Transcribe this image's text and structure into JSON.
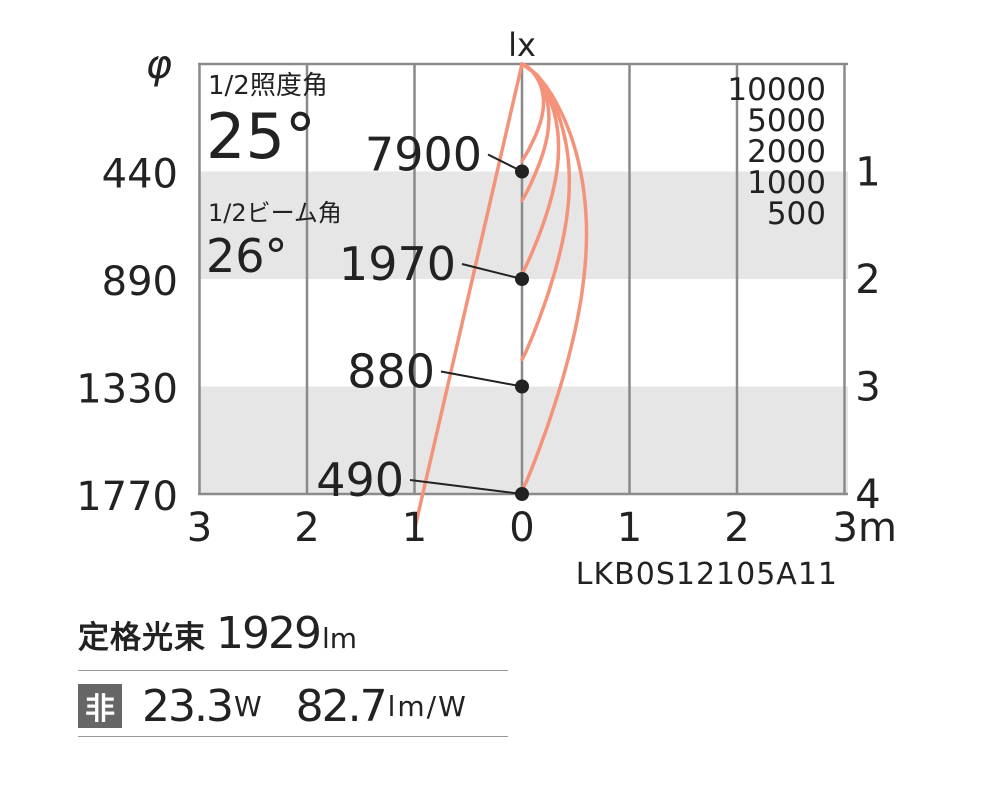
{
  "chart_data": {
    "type": "line",
    "x_unit": "m",
    "y_unit": "m",
    "distance_max": 4,
    "distances": [
      1,
      2,
      3,
      4
    ],
    "diameters": [
      "440",
      "890",
      "1330",
      "1770"
    ],
    "center_illuminance": [
      "7900",
      "1970",
      "880",
      "490"
    ],
    "x_ticks": [
      "3",
      "2",
      "1",
      "0",
      "1",
      "2",
      "3m"
    ],
    "right_ticks": [
      "1",
      "2",
      "3",
      "4"
    ],
    "diameter_symbol": "φ",
    "lux_label": "lx",
    "legend_levels": [
      "10000",
      "5000",
      "2000",
      "1000",
      "500"
    ],
    "isolux_lines": [
      {
        "level": 10000,
        "max_distance": 0.9,
        "max_half_width": 0.2
      },
      {
        "level": 5000,
        "max_distance": 1.27,
        "max_half_width": 0.25
      },
      {
        "level": 2000,
        "max_distance": 1.95,
        "max_half_width": 0.34
      },
      {
        "level": 1000,
        "max_distance": 2.75,
        "max_half_width": 0.44
      },
      {
        "level": 500,
        "max_distance": 3.97,
        "max_half_width": 0.6
      }
    ],
    "beam_half_angle_deg": 13,
    "half_illum_angle_label": "1/2照度角",
    "half_illum_angle": "25°",
    "half_beam_angle_label": "1/2ビーム角",
    "half_beam_angle": "26°",
    "model": "LKB0S12105A11",
    "colors": {
      "curve": "#f4937a",
      "grid": "#8a8a8a",
      "band": "#e6e6e6",
      "marker": "#222222"
    }
  },
  "specs": {
    "flux_label": "定格光束",
    "flux_value": "1929",
    "flux_unit": "lm",
    "type_badge": "非",
    "watt_value": "23.3",
    "watt_unit": "W",
    "efficacy_value": "82.7",
    "efficacy_unit": "lm/W"
  }
}
